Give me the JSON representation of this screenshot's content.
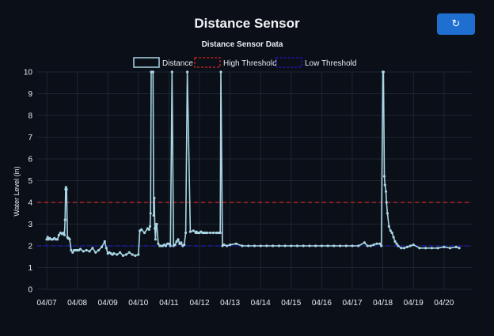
{
  "header": {
    "title": "Distance Sensor",
    "refresh_icon": "refresh-icon",
    "refresh_glyph": "↻"
  },
  "colors": {
    "background": "#0b0f17",
    "series": "#a9d6e5",
    "high_threshold": "#b22222",
    "low_threshold": "#1a1aa8",
    "grid": "#1e2633",
    "button": "#1f6fd1"
  },
  "chart_data": {
    "type": "line",
    "title": "Distance Sensor Data",
    "xlabel": "",
    "ylabel": "Water Level (in)",
    "ylim": [
      0,
      10
    ],
    "yticks": [
      0,
      1,
      2,
      3,
      4,
      5,
      6,
      7,
      8,
      9,
      10
    ],
    "xticks": [
      "04/07",
      "04/08",
      "04/09",
      "04/10",
      "04/11",
      "04/12",
      "04/13",
      "04/14",
      "04/15",
      "04/16",
      "04/17",
      "04/18",
      "04/19",
      "04/20"
    ],
    "grid": true,
    "legend_position": "top",
    "legend": [
      {
        "label": "Distance",
        "style": "solid"
      },
      {
        "label": "High Threshold",
        "style": "dashed"
      },
      {
        "label": "Low Threshold",
        "style": "dashed"
      }
    ],
    "thresholds": {
      "high": 4,
      "low": 2
    },
    "series": [
      {
        "name": "Distance",
        "x_days": [
          0.0,
          0.03,
          0.06,
          0.1,
          0.15,
          0.2,
          0.25,
          0.3,
          0.35,
          0.4,
          0.45,
          0.5,
          0.55,
          0.58,
          0.6,
          0.62,
          0.63,
          0.65,
          0.68,
          0.7,
          0.72,
          0.75,
          0.8,
          0.85,
          0.9,
          0.95,
          1.0,
          1.05,
          1.1,
          1.2,
          1.3,
          1.4,
          1.5,
          1.6,
          1.7,
          1.8,
          1.9,
          1.95,
          2.0,
          2.05,
          2.1,
          2.15,
          2.2,
          2.3,
          2.4,
          2.5,
          2.6,
          2.7,
          2.8,
          2.9,
          3.0,
          3.05,
          3.1,
          3.2,
          3.3,
          3.35,
          3.38,
          3.4,
          3.42,
          3.45,
          3.48,
          3.5,
          3.52,
          3.54,
          3.56,
          3.58,
          3.6,
          3.65,
          3.7,
          3.75,
          3.8,
          3.85,
          3.9,
          3.95,
          4.0,
          4.05,
          4.1,
          4.15,
          4.2,
          4.25,
          4.3,
          4.35,
          4.38,
          4.4,
          4.45,
          4.5,
          4.55,
          4.6,
          4.7,
          4.8,
          4.88,
          4.9,
          4.92,
          4.95,
          5.0,
          5.05,
          5.1,
          5.15,
          5.2,
          5.25,
          5.35,
          5.45,
          5.55,
          5.62,
          5.65,
          5.68,
          5.7,
          5.75,
          5.8,
          5.9,
          6.0,
          6.2,
          6.4,
          6.6,
          6.8,
          7.0,
          7.2,
          7.4,
          7.6,
          7.8,
          8.0,
          8.2,
          8.4,
          8.6,
          8.8,
          9.0,
          9.2,
          9.4,
          9.6,
          9.8,
          10.0,
          10.2,
          10.4,
          10.5,
          10.6,
          10.7,
          10.8,
          10.9,
          10.95,
          11.0,
          11.02,
          11.05,
          11.07,
          11.1,
          11.12,
          11.15,
          11.2,
          11.25,
          11.3,
          11.35,
          11.4,
          11.45,
          11.5,
          11.6,
          11.7,
          11.8,
          11.9,
          12.0,
          12.2,
          12.4,
          12.6,
          12.8,
          13.0,
          13.2,
          13.4,
          13.5
        ],
        "values": [
          2.3,
          2.4,
          2.3,
          2.35,
          2.3,
          2.3,
          2.35,
          2.3,
          2.3,
          2.5,
          2.6,
          2.55,
          2.6,
          2.5,
          3.2,
          4.6,
          4.7,
          4.6,
          2.4,
          2.35,
          2.35,
          2.3,
          1.8,
          1.7,
          1.8,
          1.8,
          1.8,
          1.8,
          1.85,
          1.75,
          1.8,
          1.75,
          1.9,
          1.7,
          1.8,
          1.95,
          2.2,
          1.9,
          1.65,
          1.7,
          1.65,
          1.6,
          1.65,
          1.6,
          1.7,
          1.55,
          1.6,
          1.7,
          1.6,
          1.55,
          1.6,
          2.7,
          2.75,
          2.6,
          2.8,
          2.75,
          2.9,
          3.5,
          10.0,
          10.0,
          10.0,
          3.4,
          4.2,
          2.8,
          2.3,
          3.0,
          3.0,
          2.1,
          2.0,
          2.0,
          2.0,
          2.05,
          2.0,
          2.1,
          2.1,
          2.0,
          10.0,
          2.0,
          2.05,
          2.2,
          2.3,
          2.1,
          2.1,
          2.15,
          2.0,
          2.05,
          2.6,
          10.0,
          2.65,
          2.7,
          2.6,
          2.65,
          2.6,
          2.6,
          2.6,
          2.65,
          2.6,
          2.6,
          2.6,
          2.6,
          2.6,
          2.6,
          2.6,
          2.6,
          2.6,
          2.6,
          10.0,
          2.0,
          2.05,
          2.0,
          2.05,
          2.1,
          2.0,
          2.0,
          2.0,
          2.0,
          2.0,
          2.0,
          2.0,
          2.0,
          2.0,
          2.0,
          2.0,
          2.0,
          2.0,
          2.0,
          2.0,
          2.0,
          2.0,
          2.0,
          2.0,
          2.0,
          2.15,
          2.0,
          2.0,
          2.05,
          2.1,
          2.1,
          2.0,
          10.0,
          10.0,
          5.2,
          4.8,
          4.5,
          4.0,
          3.5,
          2.9,
          2.7,
          2.6,
          2.4,
          2.2,
          2.1,
          2.0,
          1.9,
          1.9,
          1.95,
          2.0,
          2.05,
          1.9,
          1.9,
          1.9,
          1.9,
          1.95,
          1.9,
          1.95,
          1.9
        ]
      }
    ]
  }
}
